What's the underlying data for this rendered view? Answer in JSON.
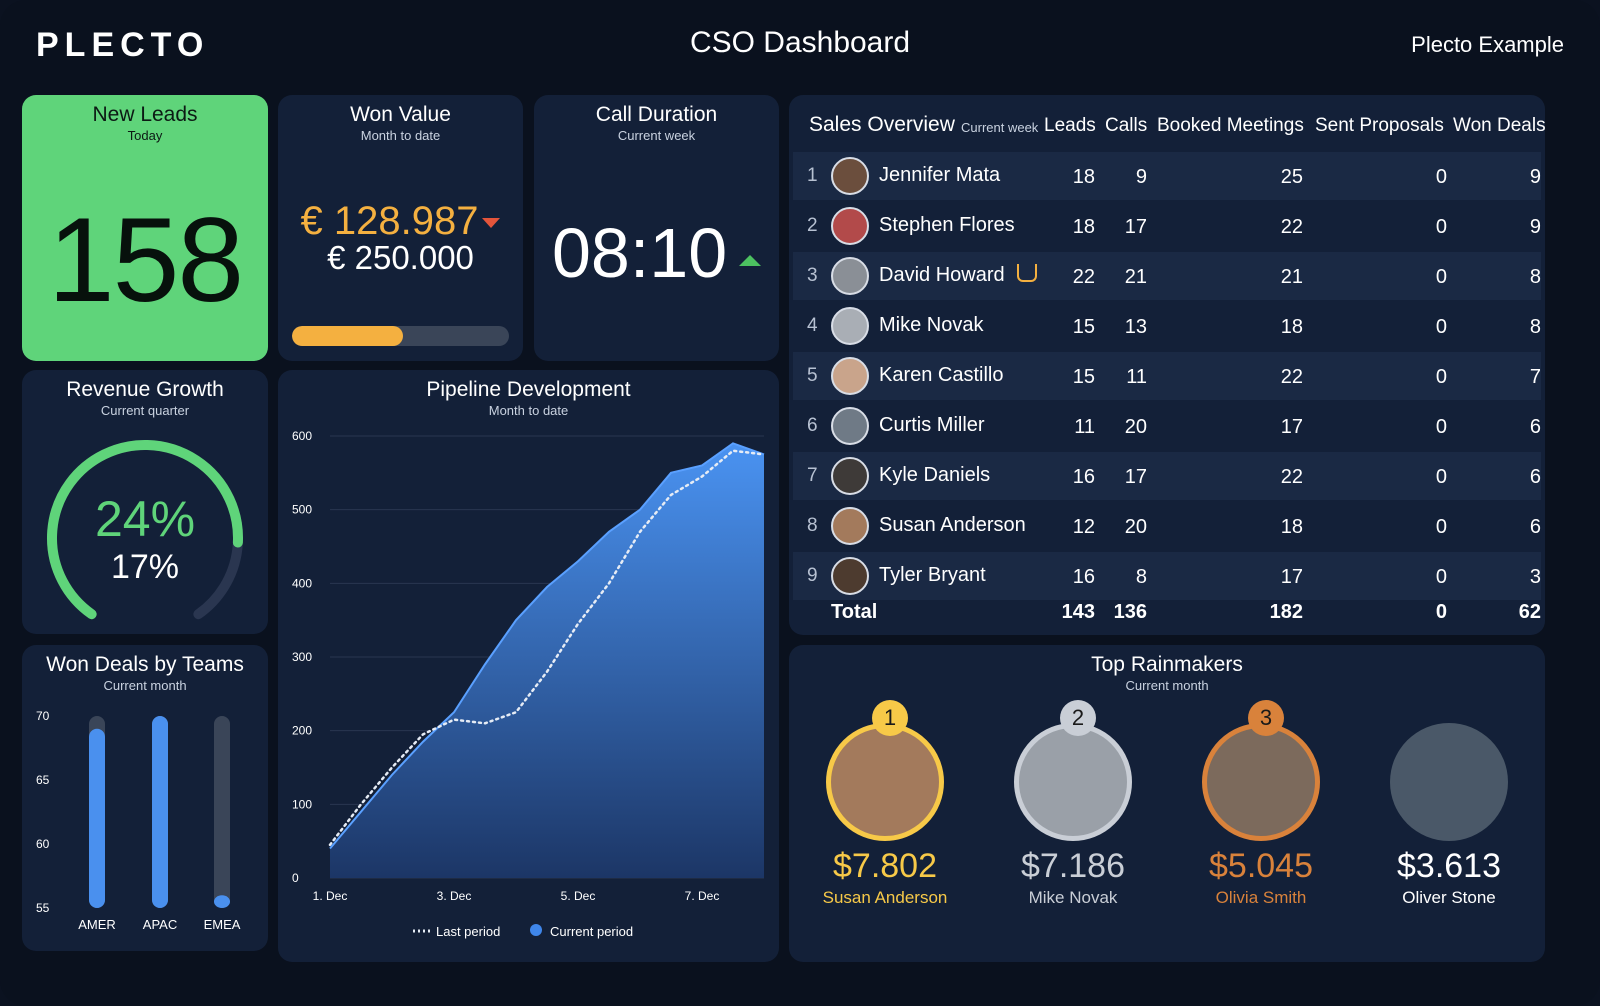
{
  "header": {
    "logo": "PLECTO",
    "title": "CSO Dashboard",
    "account": "Plecto Example"
  },
  "new_leads": {
    "title": "New Leads",
    "subtitle": "Today",
    "value": "158"
  },
  "won_value": {
    "title": "Won Value",
    "subtitle": "Month to date",
    "value": "€ 128.987",
    "target": "€ 250.000",
    "progress": 0.51,
    "trend": "down",
    "value_color": "#f4b040",
    "trend_color": "#e4553b"
  },
  "call_duration": {
    "title": "Call Duration",
    "subtitle": "Current week",
    "value": "08:10",
    "trend": "up",
    "trend_color": "#4cc160"
  },
  "revenue_growth": {
    "title": "Revenue Growth",
    "subtitle": "Current quarter",
    "primary": "24%",
    "secondary": "17%",
    "gauge_fraction": 0.82,
    "gauge_color": "#5fd47a"
  },
  "won_deals_teams": {
    "title": "Won Deals by Teams",
    "subtitle": "Current month",
    "chart_data": {
      "type": "bar",
      "categories": [
        "AMER",
        "APAC",
        "EMEA"
      ],
      "values": [
        69,
        70,
        56
      ],
      "ylim": [
        55,
        70
      ],
      "yticks": [
        "70",
        "65",
        "60",
        "55"
      ],
      "bar_color": "#4a90ee"
    }
  },
  "pipeline": {
    "title": "Pipeline Development",
    "subtitle": "Month to date",
    "chart_data": {
      "type": "area",
      "xlim": [
        1,
        8
      ],
      "ylim": [
        0,
        600
      ],
      "x_ticks": [
        "1. Dec",
        "3. Dec",
        "5. Dec",
        "7. Dec"
      ],
      "x_tick_values": [
        1,
        3,
        5,
        7
      ],
      "y_ticks": [
        "0",
        "100",
        "200",
        "300",
        "400",
        "500",
        "600"
      ],
      "series": [
        {
          "name": "Current period",
          "style": "area",
          "color": "#3f86ea",
          "x": [
            1,
            1.5,
            2,
            2.5,
            3,
            3.5,
            4,
            4.5,
            5,
            5.5,
            6,
            6.5,
            7,
            7.5,
            8
          ],
          "y": [
            40,
            90,
            140,
            185,
            225,
            290,
            350,
            395,
            430,
            470,
            500,
            550,
            560,
            590,
            575
          ]
        },
        {
          "name": "Last period",
          "style": "dotted",
          "color": "#e6ecf5",
          "x": [
            1,
            1.5,
            2,
            2.5,
            3,
            3.5,
            4,
            4.5,
            5,
            5.5,
            6,
            6.5,
            7,
            7.5,
            8
          ],
          "y": [
            45,
            100,
            150,
            195,
            215,
            210,
            225,
            280,
            345,
            400,
            470,
            520,
            545,
            580,
            575
          ]
        }
      ]
    }
  },
  "sales": {
    "title": "Sales Overview",
    "subtitle": "Current week",
    "columns": [
      "Leads",
      "Calls",
      "Booked Meetings",
      "Sent Proposals",
      "Won Deals"
    ],
    "rows": [
      {
        "rank": "1",
        "name": "Jennifer Mata",
        "leads": "18",
        "calls": "9",
        "meetings": "25",
        "proposals": "0",
        "won": "9",
        "avatar_color": "#6b4e3d"
      },
      {
        "rank": "2",
        "name": "Stephen Flores",
        "leads": "18",
        "calls": "17",
        "meetings": "22",
        "proposals": "0",
        "won": "9",
        "avatar_color": "#b24a4a"
      },
      {
        "rank": "3",
        "name": "David Howard",
        "leads": "22",
        "calls": "21",
        "meetings": "21",
        "proposals": "0",
        "won": "8",
        "avatar_color": "#8a8f96",
        "badge": "coffee-cup-icon"
      },
      {
        "rank": "4",
        "name": "Mike Novak",
        "leads": "15",
        "calls": "13",
        "meetings": "18",
        "proposals": "0",
        "won": "8",
        "avatar_color": "#a9aeb5"
      },
      {
        "rank": "5",
        "name": "Karen Castillo",
        "leads": "15",
        "calls": "11",
        "meetings": "22",
        "proposals": "0",
        "won": "7",
        "avatar_color": "#c9a48b"
      },
      {
        "rank": "6",
        "name": "Curtis Miller",
        "leads": "11",
        "calls": "20",
        "meetings": "17",
        "proposals": "0",
        "won": "6",
        "avatar_color": "#6f7a86"
      },
      {
        "rank": "7",
        "name": "Kyle Daniels",
        "leads": "16",
        "calls": "17",
        "meetings": "22",
        "proposals": "0",
        "won": "6",
        "avatar_color": "#3e3a38"
      },
      {
        "rank": "8",
        "name": "Susan Anderson",
        "leads": "12",
        "calls": "20",
        "meetings": "18",
        "proposals": "0",
        "won": "6",
        "avatar_color": "#a37a5c"
      },
      {
        "rank": "9",
        "name": "Tyler Bryant",
        "leads": "16",
        "calls": "8",
        "meetings": "17",
        "proposals": "0",
        "won": "3",
        "avatar_color": "#4d3b2f"
      }
    ],
    "total": {
      "label": "Total",
      "leads": "143",
      "calls": "136",
      "meetings": "182",
      "proposals": "0",
      "won": "62"
    }
  },
  "rainmakers": {
    "title": "Top Rainmakers",
    "subtitle": "Current month",
    "people": [
      {
        "rank": "1",
        "value": "$7.802",
        "name": "Susan Anderson",
        "color": "#f7c948",
        "photo_color": "#a37a5c"
      },
      {
        "rank": "2",
        "value": "$7.186",
        "name": "Mike Novak",
        "color": "#c9ced6",
        "photo_color": "#9aa0a8"
      },
      {
        "rank": "3",
        "value": "$5.045",
        "name": "Olivia Smith",
        "color": "#d9823b",
        "photo_color": "#7c6a5c"
      },
      {
        "rank": "",
        "value": "$3.613",
        "name": "Oliver Stone",
        "color": "#ffffff",
        "photo_color": "#4a5868"
      }
    ]
  }
}
